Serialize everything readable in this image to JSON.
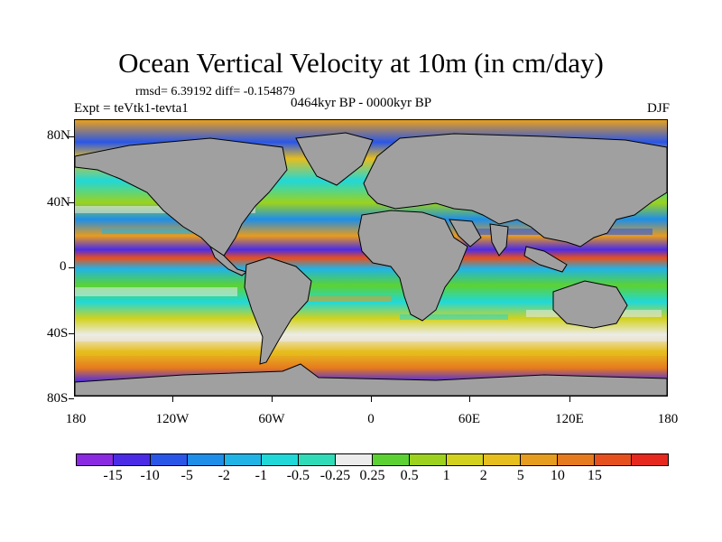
{
  "figure": {
    "title": "Ocean Vertical Velocity at 10m (in cm/day)",
    "stats": "rmsd= 6.39192 diff= -0.154879",
    "period": "0464kyr BP - 0000kyr BP",
    "experiment": "Expt = teVtk1-tevta1",
    "season": "DJF"
  },
  "map": {
    "land_color": "#a0a0a0",
    "lat_labels": [
      "80N",
      "40N",
      "0",
      "40S",
      "80S"
    ],
    "lon_labels": [
      "180",
      "120W",
      "60W",
      "0",
      "60E",
      "120E",
      "180"
    ]
  },
  "colorbar": {
    "colors": [
      "#8a2be2",
      "#4b2be6",
      "#2a56e8",
      "#1e8ee8",
      "#20b4e6",
      "#20d8d8",
      "#30dcb8",
      "#ececec",
      "#5cd232",
      "#9cd21e",
      "#d2d21e",
      "#e6be1e",
      "#e69c1e",
      "#e67a1e",
      "#e6501e",
      "#e6281e"
    ],
    "labels": [
      "-15",
      "-10",
      "-5",
      "-2",
      "-1",
      "-0.5",
      "-0.25",
      "0.25",
      "0.5",
      "1",
      "2",
      "5",
      "10",
      "15"
    ]
  }
}
